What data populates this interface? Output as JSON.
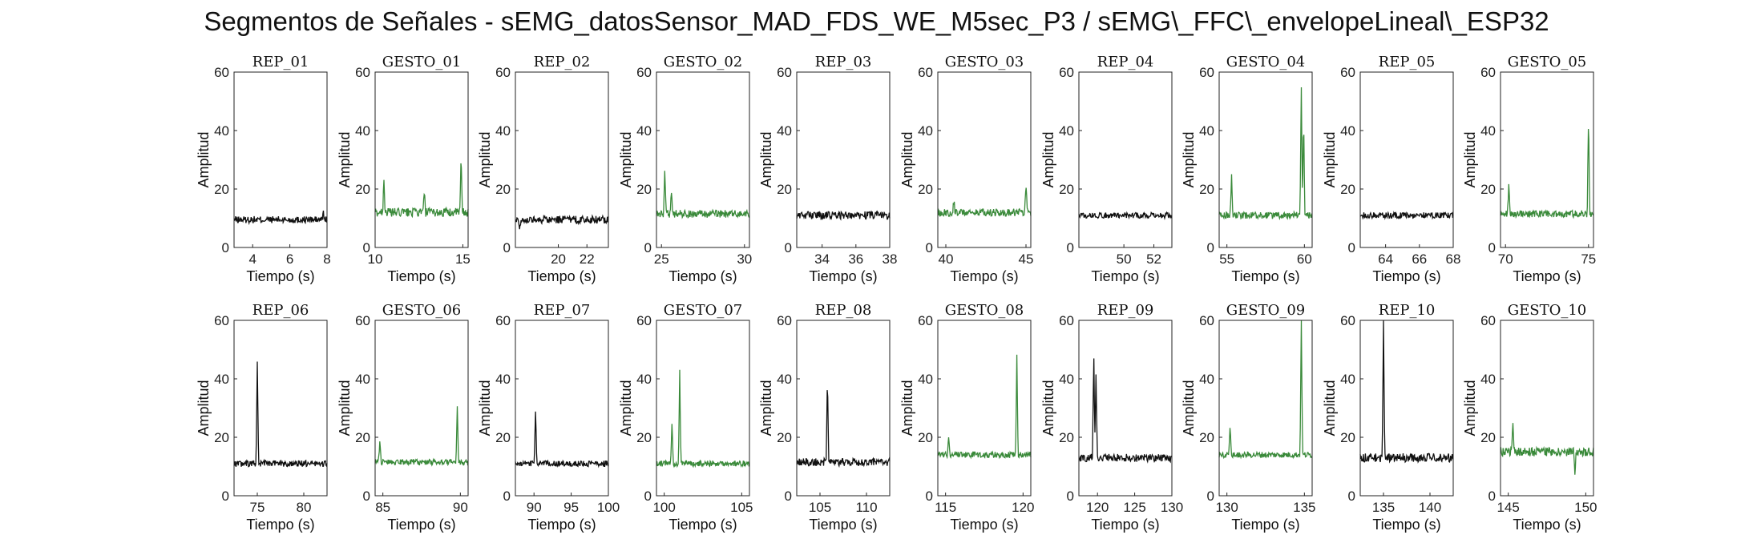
{
  "title": "Segmentos de Señales - sEMG_datosSensor_MAD_FDS_WE_M5sec_P3 / sEMG\\_FFC\\_envelopeLineal\\_ESP32",
  "colors": {
    "rep": "#111111",
    "gesto": "#3a8a3a",
    "axis": "#222222"
  },
  "chart_data": [
    {
      "type": "line",
      "title": "REP_01",
      "xlabel": "Tiempo (s)",
      "ylabel": "Amplitud",
      "xlim": [
        3,
        8
      ],
      "ylim": [
        0,
        60
      ],
      "xticks": [
        4,
        6,
        8
      ],
      "yticks": [
        0,
        20,
        40,
        60
      ],
      "color": "rep",
      "base": 9.5,
      "noise": 1.2,
      "spikes": [
        [
          7.8,
          12
        ]
      ]
    },
    {
      "type": "line",
      "title": "GESTO_01",
      "xlabel": "Tiempo (s)",
      "ylabel": "Amplitud",
      "xlim": [
        10,
        15.3
      ],
      "ylim": [
        0,
        60
      ],
      "xticks": [
        10,
        15
      ],
      "yticks": [
        0,
        20,
        40,
        60
      ],
      "color": "gesto",
      "base": 12,
      "noise": 1.5,
      "spikes": [
        [
          10.5,
          24
        ],
        [
          12.8,
          19
        ],
        [
          14.9,
          31
        ]
      ]
    },
    {
      "type": "line",
      "title": "REP_02",
      "xlabel": "Tiempo (s)",
      "ylabel": "Amplitud",
      "xlim": [
        17,
        23.5
      ],
      "ylim": [
        0,
        60
      ],
      "xticks": [
        20,
        22
      ],
      "yticks": [
        0,
        20,
        40,
        60
      ],
      "color": "rep",
      "base": 9.5,
      "noise": 1.3,
      "spikes": [
        [
          17.3,
          7
        ]
      ]
    },
    {
      "type": "line",
      "title": "GESTO_02",
      "xlabel": "Tiempo (s)",
      "ylabel": "Amplitud",
      "xlim": [
        24.7,
        30.3
      ],
      "ylim": [
        0,
        60
      ],
      "xticks": [
        25,
        30
      ],
      "yticks": [
        0,
        20,
        40,
        60
      ],
      "color": "gesto",
      "base": 11.5,
      "noise": 1.3,
      "spikes": [
        [
          25.2,
          28
        ],
        [
          25.6,
          20
        ]
      ]
    },
    {
      "type": "line",
      "title": "REP_03",
      "xlabel": "Tiempo (s)",
      "ylabel": "Amplitud",
      "xlim": [
        32.5,
        38
      ],
      "ylim": [
        0,
        60
      ],
      "xticks": [
        34,
        36,
        38
      ],
      "yticks": [
        0,
        20,
        40,
        60
      ],
      "color": "rep",
      "base": 11,
      "noise": 1.3,
      "spikes": []
    },
    {
      "type": "line",
      "title": "GESTO_03",
      "xlabel": "Tiempo (s)",
      "ylabel": "Amplitud",
      "xlim": [
        39.5,
        45.3
      ],
      "ylim": [
        0,
        60
      ],
      "xticks": [
        40,
        45
      ],
      "yticks": [
        0,
        20,
        40,
        60
      ],
      "color": "gesto",
      "base": 12,
      "noise": 1.3,
      "spikes": [
        [
          40.5,
          16
        ],
        [
          45,
          23
        ]
      ]
    },
    {
      "type": "line",
      "title": "REP_04",
      "xlabel": "Tiempo (s)",
      "ylabel": "Amplitud",
      "xlim": [
        47,
        53.2
      ],
      "ylim": [
        0,
        60
      ],
      "xticks": [
        50,
        52
      ],
      "yticks": [
        0,
        20,
        40,
        60
      ],
      "color": "rep",
      "base": 11,
      "noise": 1.0,
      "spikes": []
    },
    {
      "type": "line",
      "title": "GESTO_04",
      "xlabel": "Tiempo (s)",
      "ylabel": "Amplitud",
      "xlim": [
        54.5,
        60.5
      ],
      "ylim": [
        0,
        60
      ],
      "xticks": [
        55,
        60
      ],
      "yticks": [
        0,
        20,
        40,
        60
      ],
      "color": "gesto",
      "base": 11,
      "noise": 1.2,
      "spikes": [
        [
          55.3,
          24
        ],
        [
          59.8,
          56
        ],
        [
          59.95,
          45
        ]
      ]
    },
    {
      "type": "line",
      "title": "REP_05",
      "xlabel": "Tiempo (s)",
      "ylabel": "Amplitud",
      "xlim": [
        62.5,
        68
      ],
      "ylim": [
        0,
        60
      ],
      "xticks": [
        64,
        66,
        68
      ],
      "yticks": [
        0,
        20,
        40,
        60
      ],
      "color": "rep",
      "base": 11,
      "noise": 1.0,
      "spikes": []
    },
    {
      "type": "line",
      "title": "GESTO_05",
      "xlabel": "Tiempo (s)",
      "ylabel": "Amplitud",
      "xlim": [
        69.7,
        75.3
      ],
      "ylim": [
        0,
        60
      ],
      "xticks": [
        70,
        75
      ],
      "yticks": [
        0,
        20,
        40,
        60
      ],
      "color": "gesto",
      "base": 11.5,
      "noise": 1.2,
      "spikes": [
        [
          70.2,
          22
        ],
        [
          75,
          46
        ]
      ]
    },
    {
      "type": "line",
      "title": "REP_06",
      "xlabel": "Tiempo (s)",
      "ylabel": "Amplitud",
      "xlim": [
        72.5,
        82.5
      ],
      "ylim": [
        0,
        60
      ],
      "xticks": [
        75,
        80
      ],
      "yticks": [
        0,
        20,
        40,
        60
      ],
      "color": "rep",
      "base": 11,
      "noise": 1.1,
      "spikes": [
        [
          75,
          46
        ]
      ]
    },
    {
      "type": "line",
      "title": "GESTO_06",
      "xlabel": "Tiempo (s)",
      "ylabel": "Amplitud",
      "xlim": [
        84.5,
        90.5
      ],
      "ylim": [
        0,
        60
      ],
      "xticks": [
        85,
        90
      ],
      "yticks": [
        0,
        20,
        40,
        60
      ],
      "color": "gesto",
      "base": 11.5,
      "noise": 1.0,
      "spikes": [
        [
          84.8,
          19
        ],
        [
          89.8,
          30
        ]
      ]
    },
    {
      "type": "line",
      "title": "REP_07",
      "xlabel": "Tiempo (s)",
      "ylabel": "Amplitud",
      "xlim": [
        87.5,
        100
      ],
      "ylim": [
        0,
        60
      ],
      "xticks": [
        90,
        95,
        100
      ],
      "yticks": [
        0,
        20,
        40,
        60
      ],
      "color": "rep",
      "base": 11,
      "noise": 1.0,
      "spikes": [
        [
          90.2,
          30
        ]
      ]
    },
    {
      "type": "line",
      "title": "GESTO_07",
      "xlabel": "Tiempo (s)",
      "ylabel": "Amplitud",
      "xlim": [
        99.5,
        105.5
      ],
      "ylim": [
        0,
        60
      ],
      "xticks": [
        100,
        105
      ],
      "yticks": [
        0,
        20,
        40,
        60
      ],
      "color": "gesto",
      "base": 11,
      "noise": 1.0,
      "spikes": [
        [
          100.5,
          25
        ],
        [
          101,
          43
        ]
      ]
    },
    {
      "type": "line",
      "title": "REP_08",
      "xlabel": "Tiempo (s)",
      "ylabel": "Amplitud",
      "xlim": [
        102.5,
        112.5
      ],
      "ylim": [
        0,
        60
      ],
      "xticks": [
        105,
        110
      ],
      "yticks": [
        0,
        20,
        40,
        60
      ],
      "color": "rep",
      "base": 11.5,
      "noise": 1.3,
      "spikes": [
        [
          105.8,
          40
        ]
      ]
    },
    {
      "type": "line",
      "title": "GESTO_08",
      "xlabel": "Tiempo (s)",
      "ylabel": "Amplitud",
      "xlim": [
        114.5,
        120.5
      ],
      "ylim": [
        0,
        60
      ],
      "xticks": [
        115,
        120
      ],
      "yticks": [
        0,
        20,
        40,
        60
      ],
      "color": "gesto",
      "base": 14,
      "noise": 1.0,
      "spikes": [
        [
          115.2,
          20
        ],
        [
          119.6,
          49
        ]
      ]
    },
    {
      "type": "line",
      "title": "REP_09",
      "xlabel": "Tiempo (s)",
      "ylabel": "Amplitud",
      "xlim": [
        117.5,
        130
      ],
      "ylim": [
        0,
        60
      ],
      "xticks": [
        120,
        125,
        130
      ],
      "yticks": [
        0,
        20,
        40,
        60
      ],
      "color": "rep",
      "base": 13,
      "noise": 1.4,
      "spikes": [
        [
          119.5,
          49
        ],
        [
          119.8,
          42
        ]
      ]
    },
    {
      "type": "line",
      "title": "GESTO_09",
      "xlabel": "Tiempo (s)",
      "ylabel": "Amplitud",
      "xlim": [
        129.5,
        135.5
      ],
      "ylim": [
        0,
        60
      ],
      "xticks": [
        130,
        135
      ],
      "yticks": [
        0,
        20,
        40,
        60
      ],
      "color": "gesto",
      "base": 14,
      "noise": 1.0,
      "spikes": [
        [
          130.2,
          24
        ],
        [
          134.8,
          60
        ]
      ]
    },
    {
      "type": "line",
      "title": "REP_10",
      "xlabel": "Tiempo (s)",
      "ylabel": "Amplitud",
      "xlim": [
        132.5,
        142.5
      ],
      "ylim": [
        0,
        60
      ],
      "xticks": [
        135,
        140
      ],
      "yticks": [
        0,
        20,
        40,
        60
      ],
      "color": "rep",
      "base": 13,
      "noise": 1.5,
      "spikes": [
        [
          135,
          60
        ]
      ]
    },
    {
      "type": "line",
      "title": "GESTO_10",
      "xlabel": "Tiempo (s)",
      "ylabel": "Amplitud",
      "xlim": [
        144.5,
        150.5
      ],
      "ylim": [
        0,
        60
      ],
      "xticks": [
        145,
        150
      ],
      "yticks": [
        0,
        20,
        40,
        60
      ],
      "color": "gesto",
      "base": 15,
      "noise": 1.5,
      "spikes": [
        [
          145.3,
          25
        ],
        [
          149.3,
          6
        ]
      ]
    }
  ]
}
